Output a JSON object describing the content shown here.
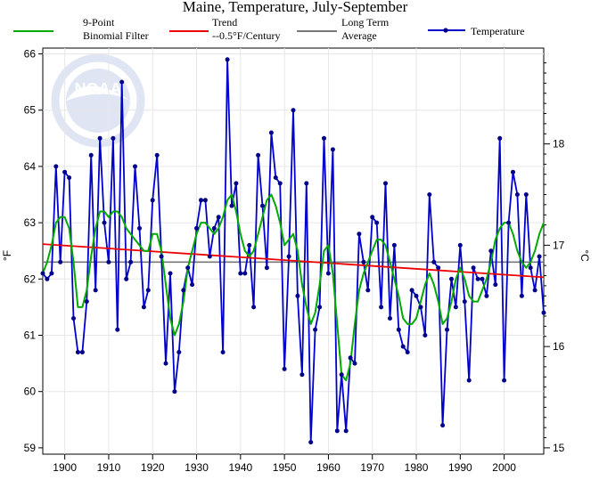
{
  "chart_data": {
    "type": "line",
    "title": "Maine, Temperature, July-September",
    "left_axis_unit": "°F",
    "right_axis_unit": "°C",
    "ylim": [
      59,
      66
    ],
    "xlim": [
      1895,
      2009
    ],
    "y_ticks": [
      59,
      60,
      61,
      62,
      63,
      64,
      65,
      66
    ],
    "x_ticks": [
      1900,
      1910,
      1920,
      1930,
      1940,
      1950,
      1960,
      1970,
      1980,
      1990,
      2000
    ],
    "right_ticks": [
      15,
      16,
      17,
      18
    ],
    "watermark": "NOAA",
    "grid": true,
    "legend": {
      "placement": "top",
      "items": [
        {
          "id": "filter",
          "line1": "9-Point",
          "line2": "Binomial Filter",
          "color": "#00aa00"
        },
        {
          "id": "trend",
          "line1": "Trend",
          "line2": "--0.5°F/Century",
          "color": "#ee0000"
        },
        {
          "id": "average",
          "line1": "Long Term",
          "line2": "Average",
          "color": "#777777"
        },
        {
          "id": "temperature",
          "line1": "Temperature",
          "line2": "",
          "color": "#0000cc"
        }
      ]
    },
    "series": [
      {
        "name": "Temperature",
        "color": "#0000cc",
        "x": [
          1895,
          1896,
          1897,
          1898,
          1899,
          1900,
          1901,
          1902,
          1903,
          1904,
          1905,
          1906,
          1907,
          1908,
          1909,
          1910,
          1911,
          1912,
          1913,
          1914,
          1915,
          1916,
          1917,
          1918,
          1919,
          1920,
          1921,
          1922,
          1923,
          1924,
          1925,
          1926,
          1927,
          1928,
          1929,
          1930,
          1931,
          1932,
          1933,
          1934,
          1935,
          1936,
          1937,
          1938,
          1939,
          1940,
          1941,
          1942,
          1943,
          1944,
          1945,
          1946,
          1947,
          1948,
          1949,
          1950,
          1951,
          1952,
          1953,
          1954,
          1955,
          1956,
          1957,
          1958,
          1959,
          1960,
          1961,
          1962,
          1963,
          1964,
          1965,
          1966,
          1967,
          1968,
          1969,
          1970,
          1971,
          1972,
          1973,
          1974,
          1975,
          1976,
          1977,
          1978,
          1979,
          1980,
          1981,
          1982,
          1983,
          1984,
          1985,
          1986,
          1987,
          1988,
          1989,
          1990,
          1991,
          1992,
          1993,
          1994,
          1995,
          1996,
          1997,
          1998,
          1999,
          2000,
          2001,
          2002,
          2003,
          2004,
          2005,
          2006,
          2007,
          2008,
          2009
        ],
        "values": [
          62.1,
          62.0,
          62.1,
          64.0,
          62.3,
          63.9,
          63.8,
          61.3,
          60.7,
          60.7,
          61.6,
          64.2,
          61.8,
          64.5,
          63.0,
          62.3,
          64.5,
          61.1,
          65.5,
          62.0,
          62.3,
          64.0,
          62.9,
          61.5,
          61.8,
          63.4,
          64.2,
          62.4,
          60.5,
          62.1,
          60.0,
          60.7,
          61.8,
          62.2,
          61.9,
          62.9,
          63.4,
          63.4,
          62.4,
          62.9,
          63.1,
          60.7,
          65.9,
          63.3,
          63.7,
          62.1,
          62.1,
          62.6,
          61.5,
          64.2,
          63.3,
          62.2,
          64.6,
          63.8,
          63.7,
          60.4,
          62.4,
          65.0,
          61.7,
          60.3,
          63.7,
          59.1,
          61.1,
          61.5,
          64.5,
          62.1,
          64.3,
          59.3,
          60.3,
          59.3,
          60.6,
          60.5,
          62.8,
          62.3,
          61.8,
          63.1,
          63.0,
          61.5,
          63.7,
          61.3,
          62.6,
          61.1,
          60.8,
          60.7,
          61.8,
          61.7,
          61.5,
          61.0,
          63.5,
          62.3,
          62.2,
          59.4,
          61.1,
          62.0,
          61.5,
          62.6,
          61.6,
          60.2,
          62.2,
          62.0,
          62.0,
          61.7,
          62.5,
          61.9,
          64.5,
          60.2,
          63.0,
          63.9,
          63.5,
          61.7,
          63.5,
          62.2,
          61.8,
          62.4,
          61.4
        ]
      },
      {
        "name": "9-Point Binomial Filter",
        "color": "#00aa00",
        "x": [
          1895,
          1896,
          1897,
          1898,
          1899,
          1900,
          1901,
          1902,
          1903,
          1904,
          1905,
          1906,
          1907,
          1908,
          1909,
          1910,
          1911,
          1912,
          1913,
          1914,
          1915,
          1916,
          1917,
          1918,
          1919,
          1920,
          1921,
          1922,
          1923,
          1924,
          1925,
          1926,
          1927,
          1928,
          1929,
          1930,
          1931,
          1932,
          1933,
          1934,
          1935,
          1936,
          1937,
          1938,
          1939,
          1940,
          1941,
          1942,
          1943,
          1944,
          1945,
          1946,
          1947,
          1948,
          1949,
          1950,
          1951,
          1952,
          1953,
          1954,
          1955,
          1956,
          1957,
          1958,
          1959,
          1960,
          1961,
          1962,
          1963,
          1964,
          1965,
          1966,
          1967,
          1968,
          1969,
          1970,
          1971,
          1972,
          1973,
          1974,
          1975,
          1976,
          1977,
          1978,
          1979,
          1980,
          1981,
          1982,
          1983,
          1984,
          1985,
          1986,
          1987,
          1988,
          1989,
          1990,
          1991,
          1992,
          1993,
          1994,
          1995,
          1996,
          1997,
          1998,
          1999,
          2000,
          2001,
          2002,
          2003,
          2004,
          2005,
          2006,
          2007,
          2008,
          2009
        ],
        "values": [
          62.1,
          62.3,
          62.6,
          63.0,
          63.1,
          63.1,
          62.9,
          62.3,
          61.5,
          61.5,
          61.8,
          62.4,
          62.9,
          63.2,
          63.2,
          63.1,
          63.2,
          63.2,
          63.1,
          62.9,
          62.8,
          62.7,
          62.6,
          62.5,
          62.5,
          62.8,
          62.8,
          62.5,
          61.9,
          61.3,
          61.0,
          61.2,
          61.6,
          62.2,
          62.5,
          62.8,
          63.0,
          63.0,
          62.9,
          62.8,
          62.9,
          63.1,
          63.4,
          63.5,
          63.2,
          62.8,
          62.5,
          62.4,
          62.5,
          62.8,
          63.1,
          63.4,
          63.5,
          63.3,
          63.0,
          62.6,
          62.7,
          62.8,
          62.5,
          61.9,
          61.5,
          61.2,
          61.4,
          61.9,
          62.5,
          62.6,
          62.1,
          61.2,
          60.3,
          60.2,
          60.5,
          61.2,
          61.8,
          62.1,
          62.3,
          62.5,
          62.7,
          62.7,
          62.6,
          62.3,
          62.0,
          61.7,
          61.3,
          61.2,
          61.2,
          61.3,
          61.6,
          61.9,
          62.1,
          61.9,
          61.6,
          61.2,
          61.3,
          61.6,
          62.0,
          62.2,
          62.0,
          61.7,
          61.6,
          61.6,
          61.8,
          62.0,
          62.3,
          62.7,
          62.9,
          63.0,
          63.0,
          62.8,
          62.5,
          62.3,
          62.2,
          62.3,
          62.5,
          62.8,
          63.0
        ]
      },
      {
        "name": "Trend",
        "color": "#ee0000",
        "x": [
          1895,
          2009
        ],
        "values": [
          62.62,
          62.03
        ]
      },
      {
        "name": "Long Term Average",
        "color": "#777777",
        "x": [
          1895,
          2009
        ],
        "values": [
          62.3,
          62.3
        ]
      }
    ]
  }
}
